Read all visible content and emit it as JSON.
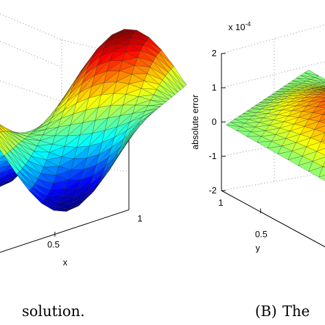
{
  "chart_data": [
    {
      "type": "surface",
      "panel": "left",
      "xlabel": "x",
      "x_ticks": [
        "0.5",
        "1"
      ],
      "surface_function": "sin(2*pi*x)*cos(pi*y) (visual approximation of a smooth solution surface)",
      "colormap": "jet",
      "mesh": "triangular",
      "grid": true,
      "caption": "solution."
    },
    {
      "type": "surface",
      "panel": "right",
      "ylabel": "absolute error",
      "xlabel": "y",
      "y_ticks": [
        "-2",
        "-1",
        "0",
        "1",
        "2"
      ],
      "x_ticks": [
        "0.5",
        "1"
      ],
      "multiplier": "x 10",
      "multiplier_exponent": "-4",
      "zlim": [
        -2,
        2
      ],
      "colormap": "jet",
      "mesh": "triangular",
      "grid": true,
      "caption_label": "(B)",
      "caption_text": "The"
    }
  ]
}
